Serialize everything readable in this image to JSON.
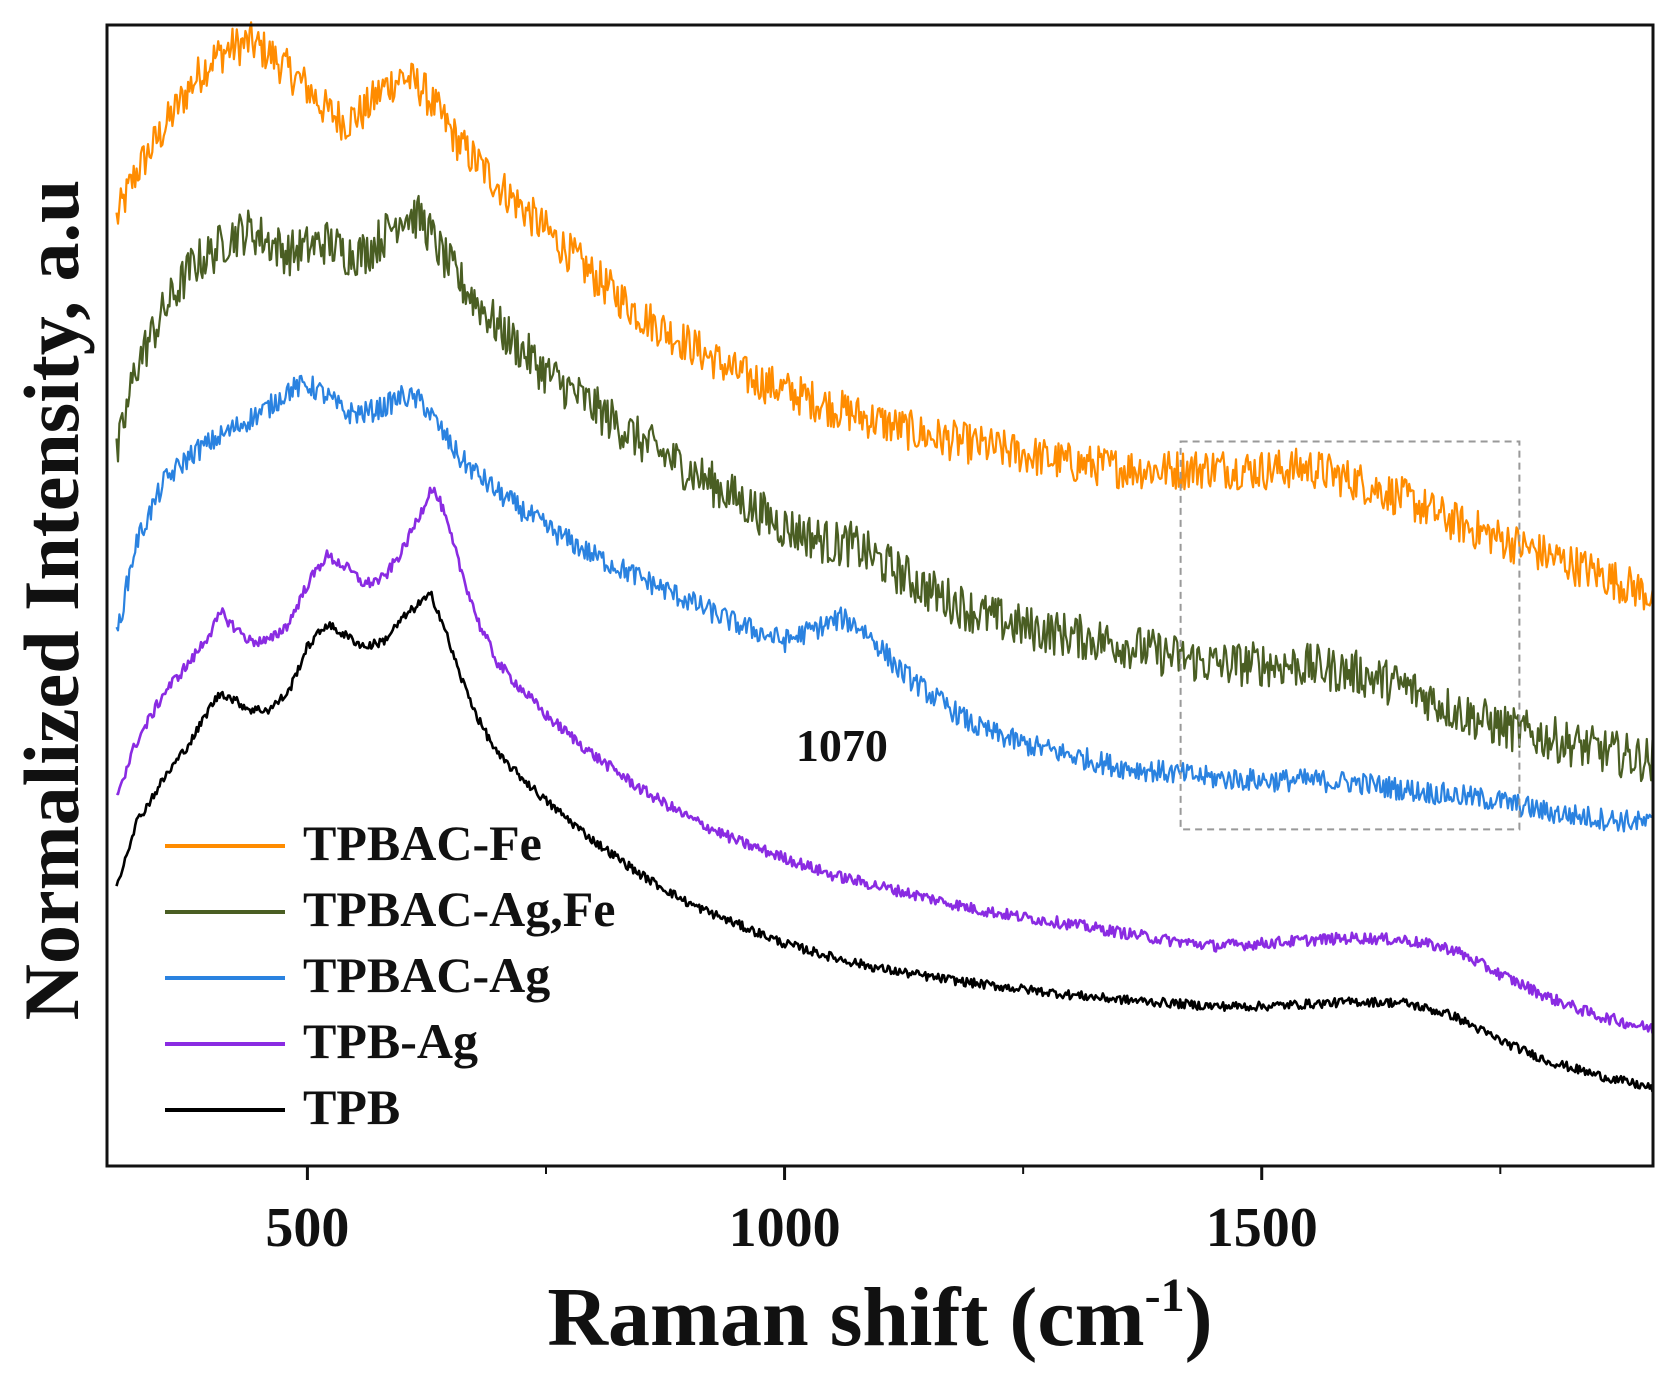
{
  "chart_data": {
    "type": "line",
    "title": "",
    "xlabel": "Raman shift (cm",
    "xlabel_sup": "-1",
    "xlabel_end": ")",
    "ylabel": "Normalized Intensity, a.u",
    "xlim": [
      290,
      1910
    ],
    "ylim": [
      0,
      1
    ],
    "x_ticks": [
      500,
      1000,
      1500
    ],
    "x_tick_labels": [
      "500",
      "1000",
      "1500"
    ],
    "x_minor_ticks": [
      750,
      1250,
      1750
    ],
    "y_ticks_shown": false,
    "grid": false,
    "legend_position": "bottom-left",
    "annotations": [
      {
        "text": "1070",
        "x": 1060,
        "y": 0.355
      }
    ],
    "highlight_box": {
      "x0": 1415,
      "x1": 1770,
      "y0": 0.295,
      "y1": 0.635,
      "style": "dashed"
    },
    "series": [
      {
        "name": "TPBAC-Fe",
        "color": "#ff8c00",
        "noise": 0.018,
        "x": [
          300,
          320,
          350,
          380,
          400,
          420,
          440,
          460,
          480,
          500,
          520,
          540,
          560,
          580,
          600,
          620,
          640,
          660,
          700,
          750,
          800,
          850,
          900,
          950,
          1000,
          1050,
          1100,
          1150,
          1200,
          1250,
          1300,
          1350,
          1400,
          1450,
          1500,
          1550,
          1600,
          1650,
          1700,
          1750,
          1800,
          1850,
          1910
        ],
        "values": [
          0.83,
          0.87,
          0.91,
          0.95,
          0.97,
          0.98,
          0.985,
          0.975,
          0.96,
          0.945,
          0.925,
          0.915,
          0.925,
          0.945,
          0.955,
          0.945,
          0.92,
          0.895,
          0.86,
          0.82,
          0.78,
          0.745,
          0.72,
          0.695,
          0.68,
          0.665,
          0.652,
          0.64,
          0.632,
          0.624,
          0.616,
          0.612,
          0.61,
          0.612,
          0.61,
          0.612,
          0.6,
          0.585,
          0.565,
          0.55,
          0.535,
          0.52,
          0.5
        ]
      },
      {
        "name": "TPBAC-Ag,Fe",
        "color": "#4a5e23",
        "noise": 0.02,
        "x": [
          300,
          320,
          350,
          380,
          400,
          420,
          440,
          460,
          480,
          500,
          520,
          540,
          560,
          580,
          600,
          620,
          640,
          660,
          700,
          750,
          800,
          850,
          900,
          950,
          1000,
          1050,
          1070,
          1100,
          1150,
          1200,
          1250,
          1300,
          1350,
          1400,
          1450,
          1500,
          1550,
          1600,
          1650,
          1700,
          1750,
          1800,
          1850,
          1910
        ],
        "values": [
          0.62,
          0.7,
          0.75,
          0.79,
          0.8,
          0.815,
          0.82,
          0.81,
          0.8,
          0.805,
          0.81,
          0.8,
          0.8,
          0.815,
          0.835,
          0.83,
          0.8,
          0.775,
          0.735,
          0.695,
          0.665,
          0.635,
          0.61,
          0.585,
          0.56,
          0.545,
          0.545,
          0.53,
          0.505,
          0.485,
          0.472,
          0.465,
          0.458,
          0.448,
          0.44,
          0.44,
          0.438,
          0.432,
          0.42,
          0.4,
          0.385,
          0.375,
          0.365,
          0.355
        ]
      },
      {
        "name": "TPBAC-Ag",
        "color": "#2a82e0",
        "noise": 0.01,
        "x": [
          300,
          320,
          350,
          380,
          400,
          420,
          440,
          460,
          480,
          500,
          520,
          540,
          560,
          580,
          600,
          620,
          640,
          660,
          700,
          750,
          800,
          850,
          900,
          950,
          1000,
          1030,
          1060,
          1080,
          1100,
          1120,
          1150,
          1200,
          1250,
          1300,
          1350,
          1400,
          1450,
          1500,
          1550,
          1600,
          1650,
          1700,
          1750,
          1800,
          1850,
          1910
        ],
        "values": [
          0.465,
          0.545,
          0.6,
          0.625,
          0.635,
          0.645,
          0.655,
          0.665,
          0.68,
          0.685,
          0.675,
          0.66,
          0.66,
          0.665,
          0.675,
          0.67,
          0.645,
          0.62,
          0.59,
          0.56,
          0.535,
          0.515,
          0.495,
          0.475,
          0.46,
          0.47,
          0.48,
          0.472,
          0.455,
          0.435,
          0.415,
          0.385,
          0.37,
          0.36,
          0.35,
          0.345,
          0.34,
          0.338,
          0.338,
          0.336,
          0.33,
          0.325,
          0.32,
          0.31,
          0.305,
          0.3
        ]
      },
      {
        "name": "TPB-Ag",
        "color": "#8a2be2",
        "noise": 0.005,
        "x": [
          300,
          320,
          350,
          380,
          400,
          410,
          420,
          440,
          460,
          480,
          500,
          520,
          540,
          560,
          580,
          600,
          620,
          630,
          640,
          660,
          680,
          700,
          750,
          800,
          850,
          900,
          950,
          1000,
          1050,
          1100,
          1150,
          1200,
          1250,
          1300,
          1350,
          1400,
          1450,
          1500,
          1550,
          1600,
          1650,
          1700,
          1750,
          1800,
          1850,
          1910
        ],
        "values": [
          0.325,
          0.37,
          0.415,
          0.445,
          0.47,
          0.485,
          0.475,
          0.46,
          0.46,
          0.475,
          0.51,
          0.535,
          0.525,
          0.51,
          0.515,
          0.54,
          0.575,
          0.595,
          0.58,
          0.525,
          0.475,
          0.44,
          0.395,
          0.36,
          0.33,
          0.305,
          0.285,
          0.27,
          0.255,
          0.245,
          0.235,
          0.225,
          0.218,
          0.212,
          0.205,
          0.198,
          0.193,
          0.195,
          0.198,
          0.2,
          0.198,
          0.19,
          0.168,
          0.148,
          0.132,
          0.12
        ]
      },
      {
        "name": "TPB",
        "color": "#000000",
        "noise": 0.004,
        "x": [
          300,
          320,
          350,
          380,
          400,
          410,
          420,
          440,
          460,
          480,
          500,
          520,
          540,
          560,
          580,
          600,
          620,
          630,
          640,
          660,
          680,
          700,
          750,
          800,
          850,
          900,
          950,
          1000,
          1050,
          1100,
          1150,
          1200,
          1250,
          1300,
          1350,
          1400,
          1450,
          1500,
          1550,
          1600,
          1650,
          1700,
          1750,
          1800,
          1850,
          1910
        ],
        "values": [
          0.245,
          0.3,
          0.34,
          0.375,
          0.405,
          0.415,
          0.41,
          0.4,
          0.4,
          0.415,
          0.455,
          0.475,
          0.465,
          0.455,
          0.46,
          0.48,
          0.495,
          0.5,
          0.48,
          0.43,
          0.39,
          0.36,
          0.32,
          0.285,
          0.255,
          0.23,
          0.212,
          0.195,
          0.183,
          0.173,
          0.166,
          0.16,
          0.155,
          0.15,
          0.146,
          0.143,
          0.14,
          0.14,
          0.142,
          0.144,
          0.143,
          0.132,
          0.11,
          0.092,
          0.08,
          0.068
        ]
      }
    ]
  }
}
